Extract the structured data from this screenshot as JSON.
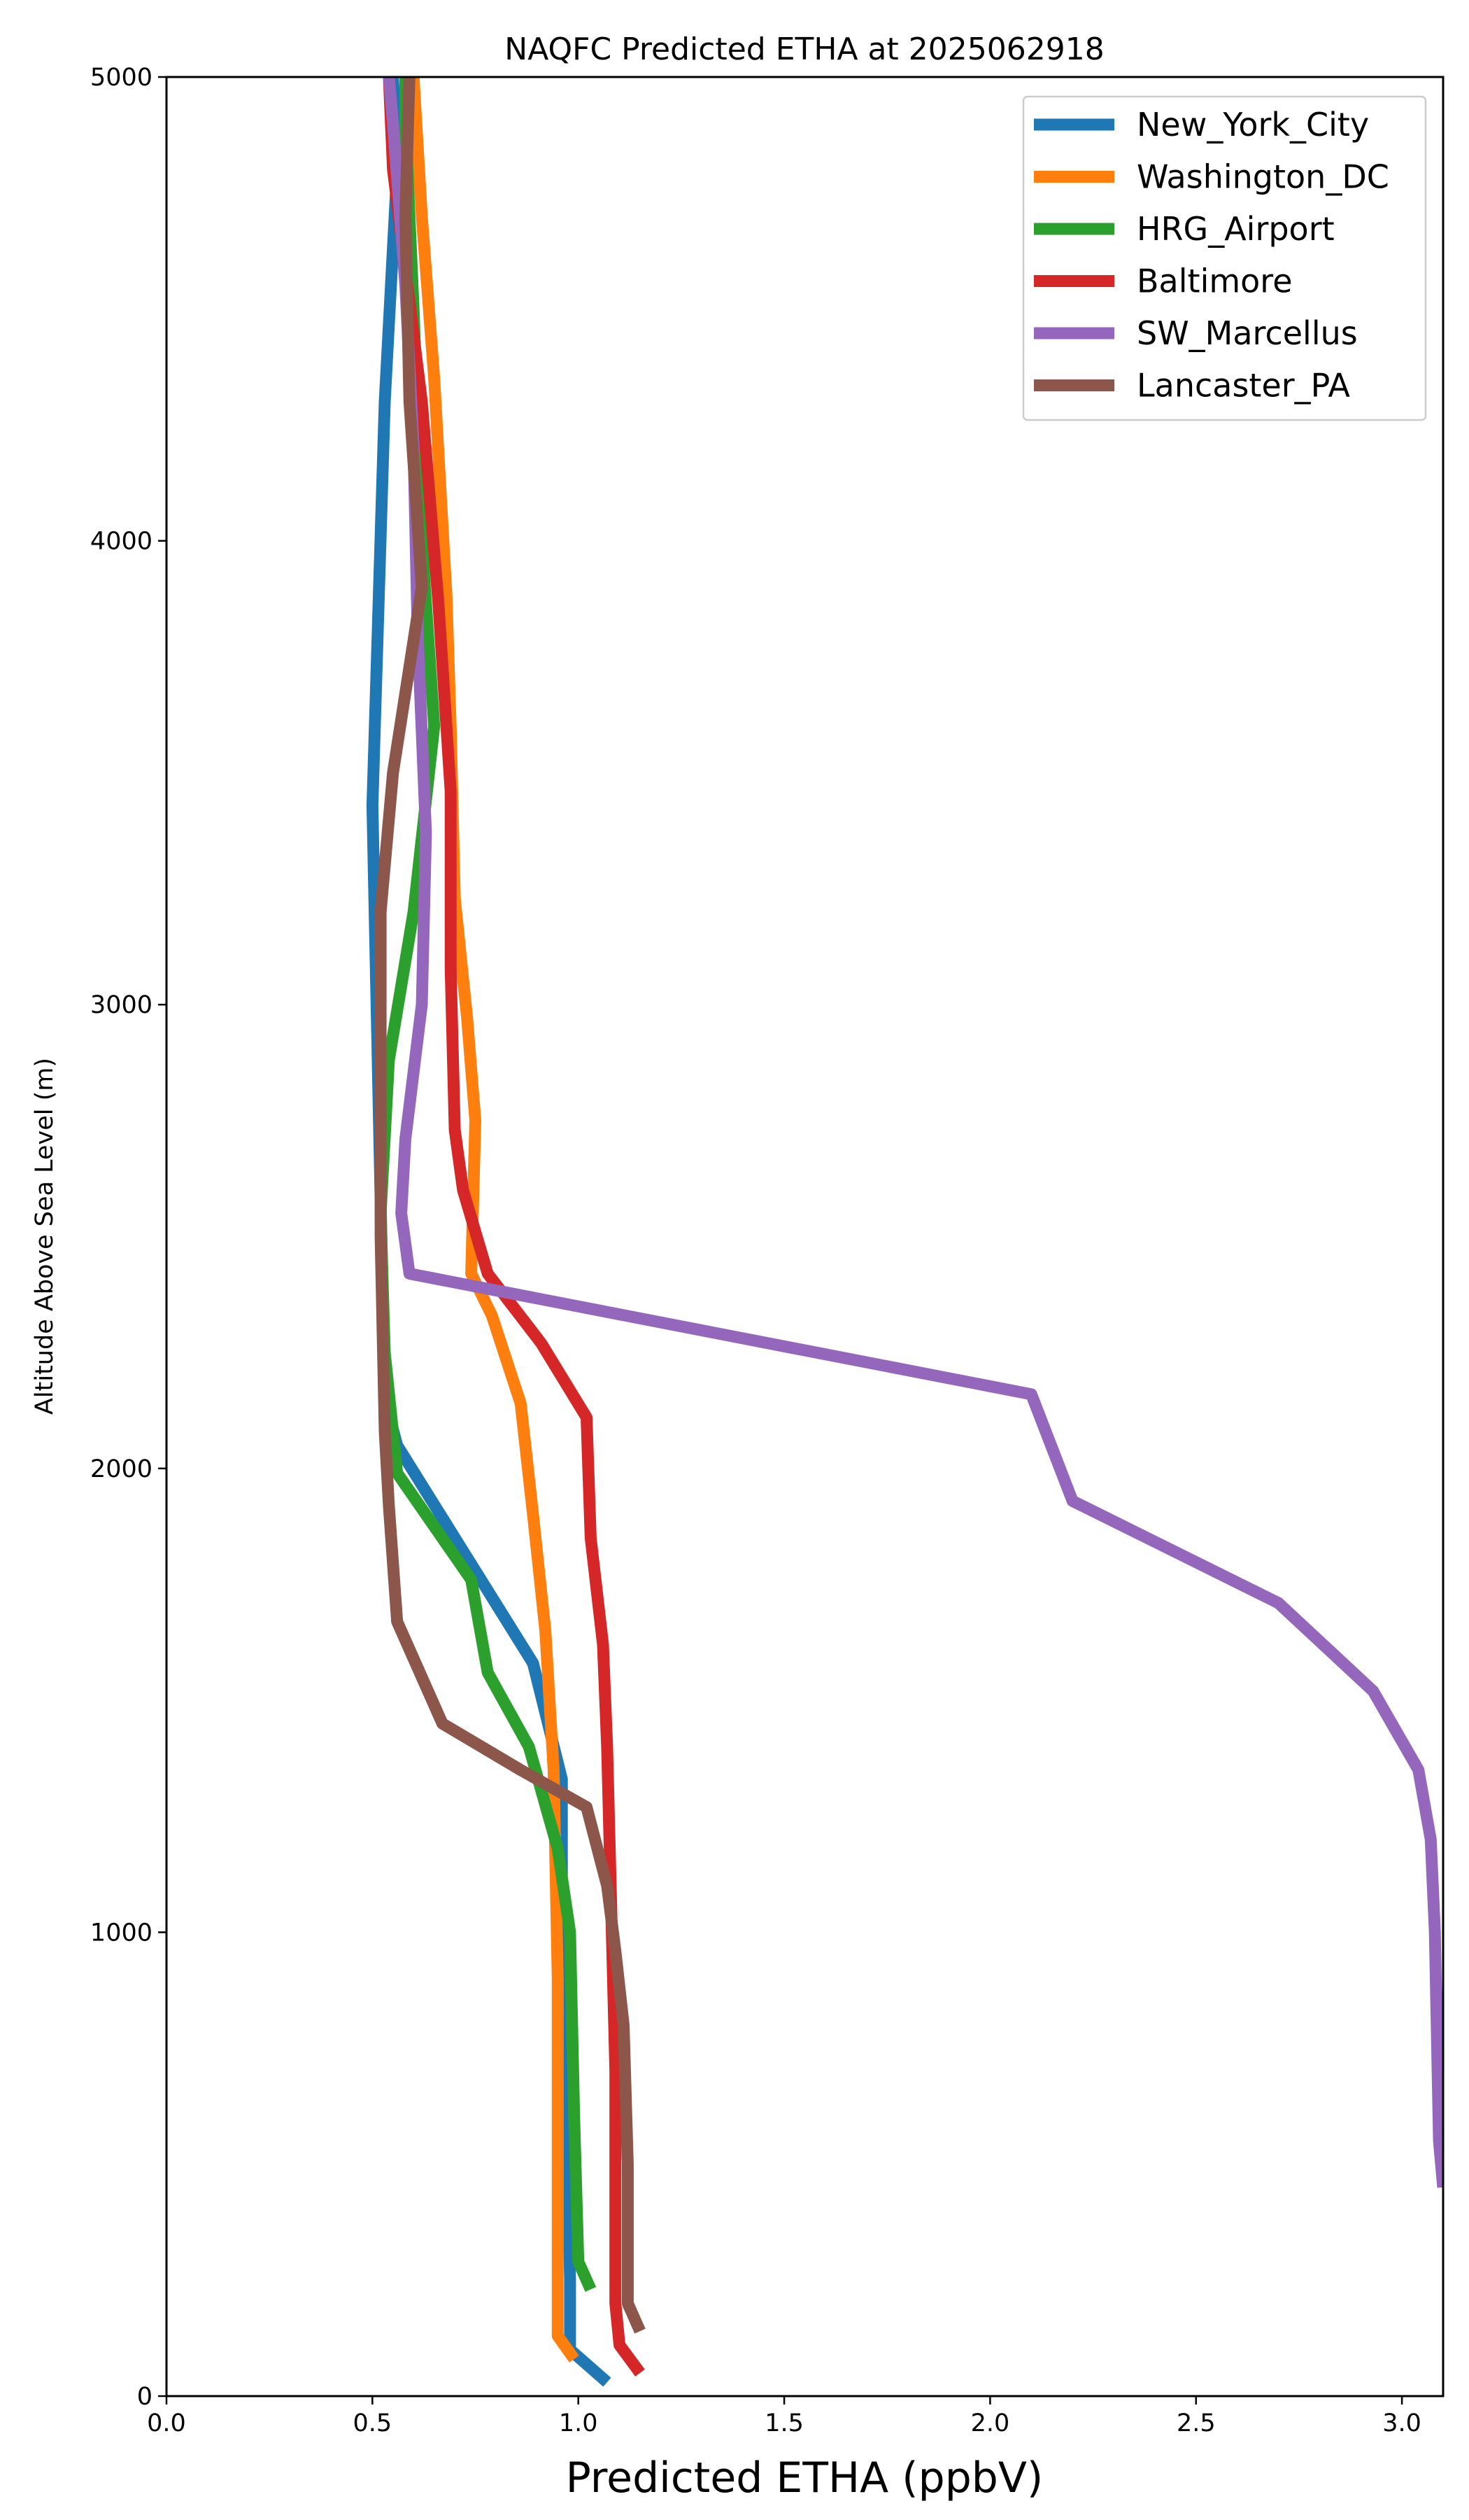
{
  "chart_data": {
    "type": "line",
    "title": "NAQFC Predicted ETHA at 2025062918",
    "xlabel": "Predicted ETHA (ppbV)",
    "ylabel": "Altitude Above Sea Level (m)",
    "xlim": [
      0.0,
      3.1
    ],
    "ylim": [
      0,
      5000
    ],
    "xticks": [
      "0.0",
      "0.5",
      "1.0",
      "1.5",
      "2.0",
      "2.5",
      "3.0"
    ],
    "yticks": [
      "0",
      "1000",
      "2000",
      "3000",
      "4000",
      "5000"
    ],
    "legend_position": "top-right",
    "grid": false,
    "series": [
      {
        "name": "New_York_City",
        "color": "#1f77b4",
        "points": [
          [
            1.07,
            30
          ],
          [
            0.98,
            100
          ],
          [
            0.98,
            250
          ],
          [
            0.97,
            700
          ],
          [
            0.96,
            1000
          ],
          [
            0.96,
            1330
          ],
          [
            0.89,
            1580
          ],
          [
            0.56,
            2050
          ],
          [
            0.53,
            2150
          ],
          [
            0.5,
            3430
          ],
          [
            0.53,
            4300
          ],
          [
            0.56,
            4800
          ],
          [
            0.55,
            5000
          ]
        ]
      },
      {
        "name": "Washington_DC",
        "color": "#ff7f0e",
        "points": [
          [
            0.99,
            80
          ],
          [
            0.95,
            130
          ],
          [
            0.95,
            400
          ],
          [
            0.95,
            900
          ],
          [
            0.94,
            1350
          ],
          [
            0.92,
            1650
          ],
          [
            0.89,
            1900
          ],
          [
            0.86,
            2140
          ],
          [
            0.79,
            2330
          ],
          [
            0.74,
            2420
          ],
          [
            0.75,
            2750
          ],
          [
            0.73,
            2970
          ],
          [
            0.7,
            3230
          ],
          [
            0.69,
            3600
          ],
          [
            0.68,
            3880
          ],
          [
            0.65,
            4350
          ],
          [
            0.62,
            4700
          ],
          [
            0.6,
            5000
          ]
        ]
      },
      {
        "name": "HRG_Airport",
        "color": "#2ca02c",
        "points": [
          [
            1.03,
            230
          ],
          [
            1.0,
            290
          ],
          [
            0.99,
            600
          ],
          [
            0.98,
            1000
          ],
          [
            0.95,
            1180
          ],
          [
            0.88,
            1400
          ],
          [
            0.78,
            1560
          ],
          [
            0.74,
            1760
          ],
          [
            0.56,
            1990
          ],
          [
            0.53,
            2250
          ],
          [
            0.52,
            2550
          ],
          [
            0.54,
            2880
          ],
          [
            0.6,
            3200
          ],
          [
            0.65,
            3600
          ],
          [
            0.62,
            4000
          ],
          [
            0.6,
            4500
          ],
          [
            0.58,
            4900
          ],
          [
            0.58,
            5000
          ]
        ]
      },
      {
        "name": "Baltimore",
        "color": "#d62728",
        "points": [
          [
            1.15,
            50
          ],
          [
            1.1,
            110
          ],
          [
            1.09,
            200
          ],
          [
            1.09,
            700
          ],
          [
            1.08,
            1050
          ],
          [
            1.07,
            1400
          ],
          [
            1.06,
            1620
          ],
          [
            1.03,
            1850
          ],
          [
            1.02,
            2110
          ],
          [
            0.91,
            2270
          ],
          [
            0.78,
            2420
          ],
          [
            0.72,
            2600
          ],
          [
            0.7,
            2730
          ],
          [
            0.69,
            3080
          ],
          [
            0.69,
            3460
          ],
          [
            0.66,
            3870
          ],
          [
            0.62,
            4300
          ],
          [
            0.55,
            4800
          ],
          [
            0.54,
            5000
          ]
        ]
      },
      {
        "name": "SW_Marcellus",
        "color": "#9467bd",
        "points": [
          [
            3.1,
            450
          ],
          [
            3.09,
            550
          ],
          [
            3.08,
            1000
          ],
          [
            3.07,
            1200
          ],
          [
            3.04,
            1350
          ],
          [
            2.93,
            1520
          ],
          [
            2.7,
            1710
          ],
          [
            2.2,
            1930
          ],
          [
            2.1,
            2160
          ],
          [
            0.59,
            2420
          ],
          [
            0.57,
            2550
          ],
          [
            0.58,
            2710
          ],
          [
            0.62,
            3000
          ],
          [
            0.63,
            3370
          ],
          [
            0.61,
            3800
          ],
          [
            0.6,
            4200
          ],
          [
            0.58,
            4550
          ],
          [
            0.55,
            4900
          ],
          [
            0.54,
            5000
          ]
        ]
      },
      {
        "name": "Lancaster_PA",
        "color": "#8c564b",
        "points": [
          [
            1.15,
            140
          ],
          [
            1.12,
            200
          ],
          [
            1.12,
            500
          ],
          [
            1.11,
            800
          ],
          [
            1.09,
            960
          ],
          [
            1.07,
            1100
          ],
          [
            1.02,
            1270
          ],
          [
            0.86,
            1350
          ],
          [
            0.67,
            1450
          ],
          [
            0.56,
            1670
          ],
          [
            0.54,
            1920
          ],
          [
            0.53,
            2080
          ],
          [
            0.52,
            2500
          ],
          [
            0.52,
            2800
          ],
          [
            0.52,
            3200
          ],
          [
            0.55,
            3500
          ],
          [
            0.62,
            3900
          ],
          [
            0.59,
            4300
          ],
          [
            0.58,
            4700
          ],
          [
            0.59,
            5000
          ]
        ]
      }
    ]
  }
}
